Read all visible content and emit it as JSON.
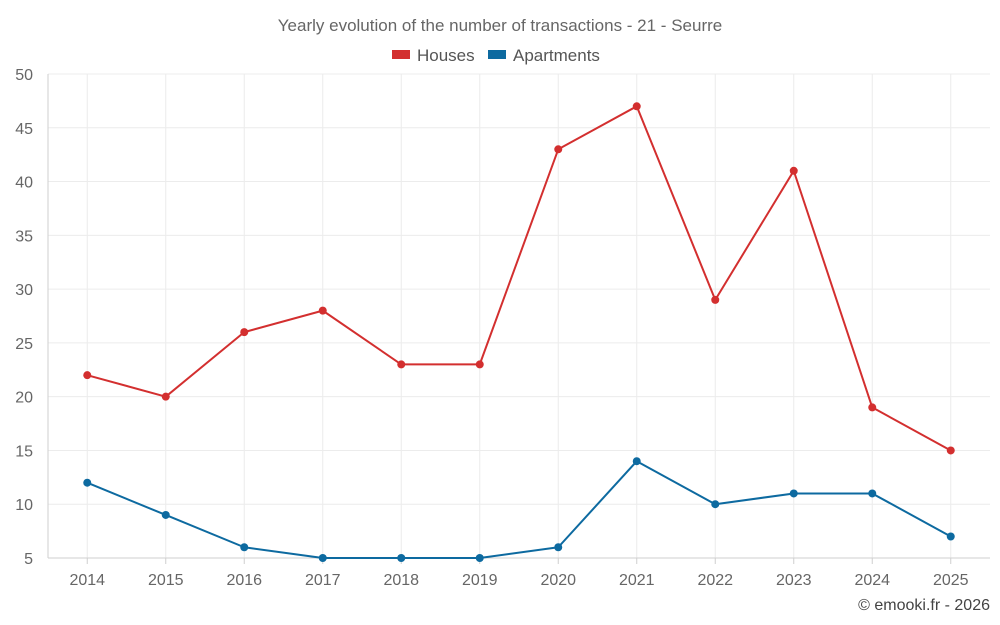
{
  "chart_data": {
    "type": "line",
    "title": "Yearly evolution of the number of transactions - 21 - Seurre",
    "categories": [
      "2014",
      "2015",
      "2016",
      "2017",
      "2018",
      "2019",
      "2020",
      "2021",
      "2022",
      "2023",
      "2024",
      "2025"
    ],
    "series": [
      {
        "name": "Houses",
        "color": "#d32f2f",
        "values": [
          22,
          20,
          26,
          28,
          23,
          23,
          43,
          47,
          29,
          41,
          19,
          15
        ]
      },
      {
        "name": "Apartments",
        "color": "#0d6aa0",
        "values": [
          12,
          9,
          6,
          5,
          5,
          5,
          6,
          14,
          10,
          11,
          11,
          7
        ]
      }
    ],
    "ylim": [
      5,
      50
    ],
    "yticks": [
      5,
      10,
      15,
      20,
      25,
      30,
      35,
      40,
      45,
      50
    ],
    "grid": true,
    "legend_position": "top-center",
    "xlabel": "",
    "ylabel": ""
  },
  "credit": "© emooki.fr - 2026"
}
